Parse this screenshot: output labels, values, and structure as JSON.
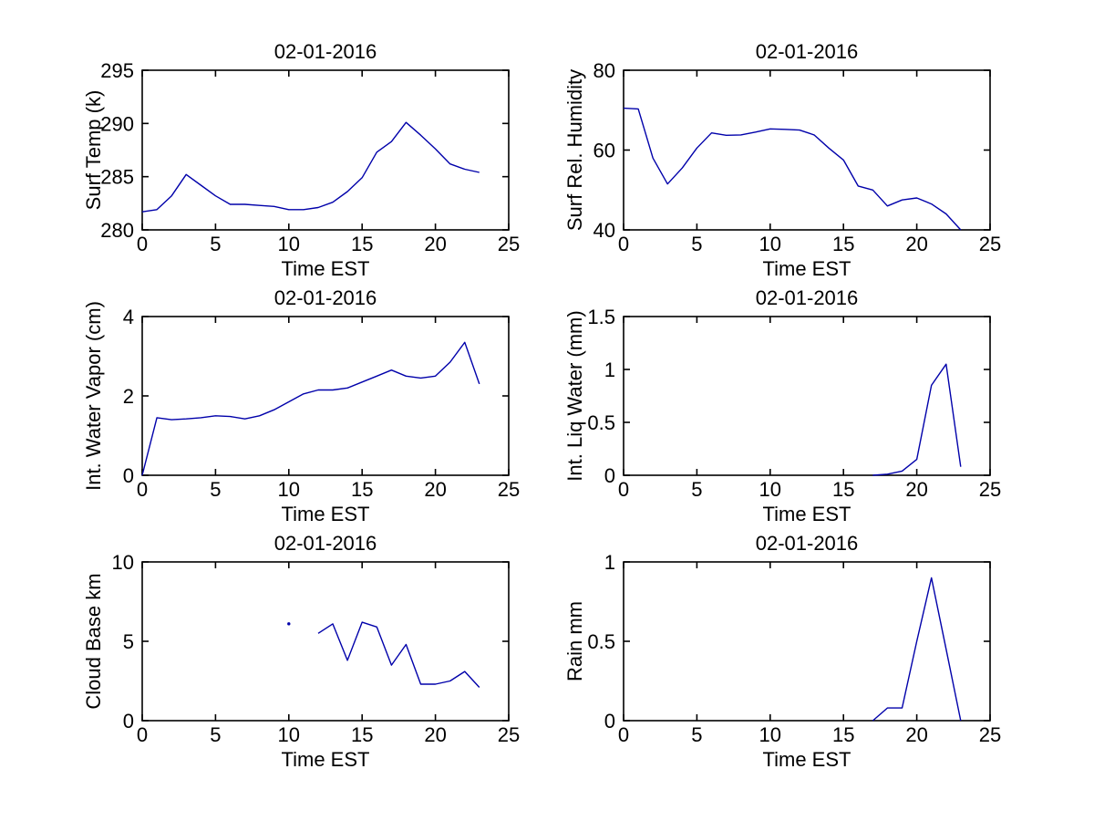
{
  "style": {
    "background": "#ffffff",
    "axis_color": "#000000",
    "text_color": "#000000",
    "line_color": "#0000AA"
  },
  "chart_data": [
    {
      "id": "surf-temp",
      "type": "line",
      "title": "02-01-2016",
      "xlabel": "Time EST",
      "ylabel": "Surf Temp (k)",
      "xlim": [
        0,
        25
      ],
      "ylim": [
        280,
        295
      ],
      "xticks": [
        0,
        5,
        10,
        15,
        20,
        25
      ],
      "yticks": [
        280,
        285,
        290,
        295
      ],
      "grid": false,
      "series": [
        {
          "name": "surface-temperature",
          "x": [
            0,
            1,
            2,
            3,
            4,
            5,
            6,
            7,
            8,
            9,
            10,
            11,
            12,
            13,
            14,
            15,
            16,
            17,
            18,
            19,
            20,
            21,
            22,
            23
          ],
          "y": [
            281.7,
            281.9,
            283.2,
            285.2,
            284.2,
            283.2,
            282.4,
            282.4,
            282.3,
            282.2,
            281.9,
            281.9,
            282.1,
            282.6,
            283.6,
            284.9,
            287.3,
            288.3,
            290.1,
            288.9,
            287.6,
            286.2,
            285.7,
            285.4
          ]
        }
      ]
    },
    {
      "id": "surf-rel-humidity",
      "type": "line",
      "title": "02-01-2016",
      "xlabel": "Time EST",
      "ylabel": "Surf Rel. Humidity",
      "xlim": [
        0,
        25
      ],
      "ylim": [
        40,
        80
      ],
      "xticks": [
        0,
        5,
        10,
        15,
        20,
        25
      ],
      "yticks": [
        40,
        60,
        80
      ],
      "grid": false,
      "series": [
        {
          "name": "surface-relative-humidity",
          "x": [
            0,
            1,
            2,
            3,
            4,
            5,
            6,
            7,
            8,
            9,
            10,
            11,
            12,
            13,
            14,
            15,
            16,
            17,
            18,
            19,
            20,
            21,
            22,
            23
          ],
          "y": [
            70.5,
            70.3,
            58,
            51.5,
            55.5,
            60.5,
            64.3,
            63.7,
            63.8,
            64.5,
            65.3,
            65.2,
            65,
            63.8,
            60.5,
            57.5,
            51,
            50,
            46,
            47.5,
            48,
            46.5,
            44,
            40
          ]
        }
      ]
    },
    {
      "id": "int-water-vapor",
      "type": "line",
      "title": "02-01-2016",
      "xlabel": "Time EST",
      "ylabel": "Int. Water Vapor (cm)",
      "xlim": [
        0,
        25
      ],
      "ylim": [
        0,
        4
      ],
      "xticks": [
        0,
        5,
        10,
        15,
        20,
        25
      ],
      "yticks": [
        0,
        2,
        4
      ],
      "grid": false,
      "series": [
        {
          "name": "integrated-water-vapor",
          "x": [
            0,
            1,
            2,
            3,
            4,
            5,
            6,
            7,
            8,
            9,
            10,
            11,
            12,
            13,
            14,
            15,
            16,
            17,
            18,
            19,
            20,
            21,
            22,
            23
          ],
          "y": [
            0,
            1.45,
            1.4,
            1.42,
            1.45,
            1.5,
            1.48,
            1.42,
            1.5,
            1.65,
            1.85,
            2.05,
            2.15,
            2.15,
            2.2,
            2.35,
            2.5,
            2.65,
            2.5,
            2.45,
            2.5,
            2.85,
            3.35,
            2.3
          ]
        }
      ]
    },
    {
      "id": "int-liq-water",
      "type": "line",
      "title": "02-01-2016",
      "xlabel": "Time EST",
      "ylabel": "Int. Liq Water (mm)",
      "xlim": [
        0,
        25
      ],
      "ylim": [
        0,
        1.5
      ],
      "xticks": [
        0,
        5,
        10,
        15,
        20,
        25
      ],
      "yticks": [
        0,
        0.5,
        1,
        1.5
      ],
      "grid": false,
      "series": [
        {
          "name": "integrated-liquid-water",
          "x": [
            17,
            18,
            19,
            20,
            21,
            22,
            23
          ],
          "y": [
            0,
            0.01,
            0.04,
            0.15,
            0.85,
            1.05,
            0.08
          ]
        }
      ]
    },
    {
      "id": "cloud-base",
      "type": "line",
      "title": "02-01-2016",
      "xlabel": "Time EST",
      "ylabel": "Cloud Base km",
      "xlim": [
        0,
        25
      ],
      "ylim": [
        0,
        10
      ],
      "xticks": [
        0,
        5,
        10,
        15,
        20,
        25
      ],
      "yticks": [
        0,
        5,
        10
      ],
      "grid": false,
      "series": [
        {
          "name": "cloud-base-isolated-point",
          "marker": "point",
          "x": [
            10
          ],
          "y": [
            6.1
          ]
        },
        {
          "name": "cloud-base-height",
          "x": [
            12,
            13,
            14,
            15,
            16,
            17,
            18,
            19,
            20,
            21,
            22,
            23
          ],
          "y": [
            5.5,
            6.1,
            3.8,
            6.2,
            5.9,
            3.5,
            4.8,
            2.3,
            2.3,
            2.5,
            3.1,
            2.1
          ]
        }
      ]
    },
    {
      "id": "rain",
      "type": "line",
      "title": "02-01-2016",
      "xlabel": "Time EST",
      "ylabel": "Rain mm",
      "xlim": [
        0,
        25
      ],
      "ylim": [
        0,
        1
      ],
      "xticks": [
        0,
        5,
        10,
        15,
        20,
        25
      ],
      "yticks": [
        0,
        0.5,
        1
      ],
      "grid": false,
      "series": [
        {
          "name": "rain-rate",
          "x": [
            17,
            18,
            19,
            20,
            21,
            22,
            23
          ],
          "y": [
            0,
            0.08,
            0.08,
            0.5,
            0.9,
            0.45,
            0
          ]
        }
      ]
    }
  ]
}
